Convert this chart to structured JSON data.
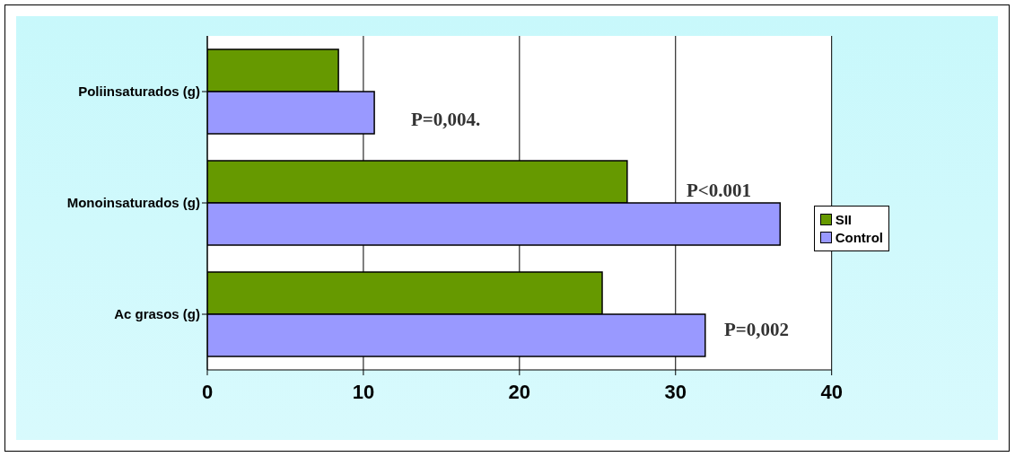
{
  "chart_data": {
    "type": "bar",
    "orientation": "horizontal",
    "categories": [
      "Poliinsaturados (g)",
      "Monoinsaturados (g)",
      "Ac grasos (g)"
    ],
    "series": [
      {
        "name": "SII",
        "color": "#669900",
        "values": [
          8.4,
          26.9,
          25.3
        ]
      },
      {
        "name": "Control",
        "color": "#9999ff",
        "values": [
          10.7,
          36.7,
          31.9
        ]
      }
    ],
    "xlim": [
      0,
      40
    ],
    "xticks": [
      0,
      10,
      20,
      30,
      40
    ],
    "grid": "x",
    "legend": "right",
    "annotations": [
      "P=0,004.",
      "P<0.001",
      "P=0,002"
    ]
  }
}
